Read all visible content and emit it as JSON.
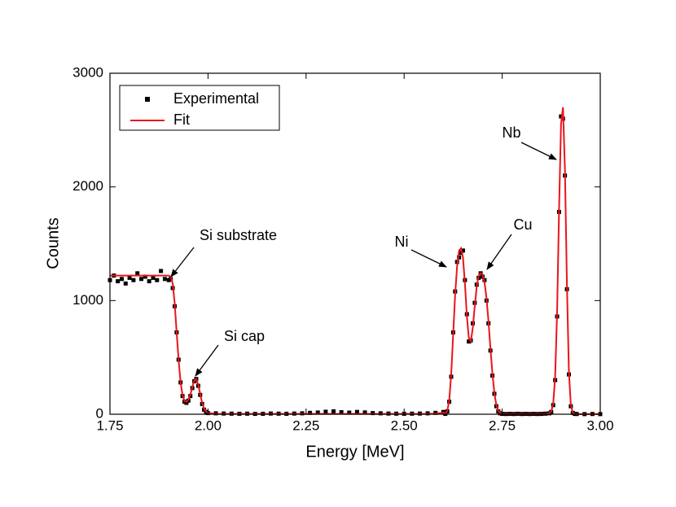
{
  "chart_data": {
    "type": "scatter",
    "xlabel": "Energy [MeV]",
    "ylabel": "Counts",
    "xlim": [
      1.75,
      3.0
    ],
    "ylim": [
      0,
      3000
    ],
    "xticks": [
      1.75,
      {
        "value": 2,
        "label": "2.00"
      },
      2.25,
      {
        "value": 2.5,
        "label": "2.50"
      },
      2.75,
      {
        "value": 3,
        "label": "3.00"
      }
    ],
    "yticks": [
      0,
      1000,
      2000,
      3000
    ],
    "legend": "upper left",
    "x": [
      1.75,
      1.76,
      1.77,
      1.78,
      1.79,
      1.8,
      1.81,
      1.82,
      1.83,
      1.84,
      1.85,
      1.86,
      1.87,
      1.88,
      1.89,
      1.9,
      1.905,
      1.91,
      1.915,
      1.92,
      1.925,
      1.93,
      1.935,
      1.94,
      1.945,
      1.95,
      1.955,
      1.96,
      1.965,
      1.97,
      1.975,
      1.98,
      1.985,
      1.99,
      1.995,
      2.0,
      2.02,
      2.04,
      2.06,
      2.08,
      2.1,
      2.12,
      2.14,
      2.16,
      2.18,
      2.2,
      2.22,
      2.24,
      2.26,
      2.28,
      2.3,
      2.32,
      2.34,
      2.36,
      2.38,
      2.4,
      2.42,
      2.44,
      2.46,
      2.48,
      2.5,
      2.52,
      2.54,
      2.56,
      2.58,
      2.6,
      2.605,
      2.61,
      2.615,
      2.62,
      2.625,
      2.63,
      2.635,
      2.64,
      2.645,
      2.65,
      2.655,
      2.66,
      2.665,
      2.67,
      2.675,
      2.68,
      2.685,
      2.69,
      2.695,
      2.7,
      2.705,
      2.71,
      2.715,
      2.72,
      2.725,
      2.73,
      2.735,
      2.74,
      2.745,
      2.75,
      2.76,
      2.77,
      2.78,
      2.79,
      2.8,
      2.81,
      2.82,
      2.83,
      2.84,
      2.85,
      2.86,
      2.87,
      2.875,
      2.88,
      2.885,
      2.89,
      2.895,
      2.9,
      2.905,
      2.91,
      2.915,
      2.92,
      2.925,
      2.93,
      2.935,
      2.94,
      2.96,
      2.98,
      3.0
    ],
    "series": [
      {
        "name": "Experimental",
        "color": "#000000",
        "values": [
          1180,
          1220,
          1170,
          1190,
          1150,
          1200,
          1180,
          1240,
          1190,
          1210,
          1170,
          1200,
          1180,
          1260,
          1190,
          1180,
          1190,
          1110,
          950,
          720,
          480,
          280,
          160,
          110,
          100,
          120,
          160,
          230,
          290,
          310,
          250,
          170,
          90,
          40,
          20,
          10,
          8,
          6,
          5,
          4,
          5,
          3,
          4,
          6,
          5,
          4,
          6,
          8,
          12,
          15,
          22,
          25,
          18,
          14,
          20,
          16,
          10,
          8,
          6,
          5,
          4,
          5,
          6,
          8,
          12,
          20,
          3,
          25,
          110,
          330,
          720,
          1080,
          1340,
          1380,
          1420,
          1440,
          1180,
          880,
          640,
          650,
          800,
          980,
          1140,
          1200,
          1240,
          1210,
          1180,
          1000,
          800,
          560,
          340,
          180,
          70,
          25,
          8,
          3,
          2,
          3,
          2,
          4,
          2,
          3,
          2,
          3,
          2,
          3,
          5,
          8,
          20,
          80,
          300,
          860,
          1780,
          2620,
          2600,
          2100,
          1100,
          350,
          70,
          12,
          3,
          2,
          1,
          2,
          1
        ]
      },
      {
        "name": "Fit",
        "color": "#e8151b",
        "values": [
          1220,
          1220,
          1220,
          1220,
          1220,
          1220,
          1220,
          1220,
          1220,
          1220,
          1220,
          1220,
          1220,
          1220,
          1220,
          1220,
          1210,
          1150,
          980,
          720,
          480,
          280,
          170,
          115,
          110,
          130,
          170,
          240,
          295,
          310,
          260,
          180,
          100,
          50,
          25,
          12,
          3,
          3,
          3,
          3,
          3,
          3,
          3,
          3,
          3,
          3,
          3,
          3,
          3,
          3,
          3,
          3,
          3,
          3,
          3,
          3,
          3,
          3,
          3,
          3,
          3,
          3,
          3,
          3,
          5,
          15,
          5,
          30,
          120,
          350,
          700,
          1050,
          1300,
          1440,
          1460,
          1380,
          1150,
          860,
          670,
          640,
          760,
          950,
          1120,
          1220,
          1240,
          1230,
          1160,
          1020,
          820,
          580,
          360,
          190,
          80,
          30,
          10,
          4,
          2,
          2,
          2,
          2,
          2,
          2,
          2,
          2,
          2,
          2,
          3,
          8,
          25,
          90,
          330,
          900,
          1800,
          2550,
          2700,
          2150,
          1150,
          380,
          80,
          15,
          3,
          1,
          1,
          1,
          1
        ]
      }
    ],
    "annotations": [
      "Si substrate",
      "Si cap",
      "Ni",
      "Cu",
      "Nb"
    ]
  }
}
